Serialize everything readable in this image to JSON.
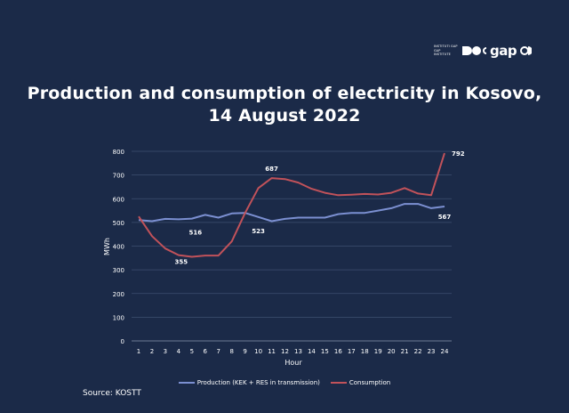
{
  "header": {
    "title_line1": "Production and consumption of electricity in Kosovo,",
    "title_line2": "14 August 2022",
    "logo_small": "INSTITUTI GAP GAP INSTITUTE",
    "logo_mark": "gap"
  },
  "source": "Source: KOSTT",
  "colors": {
    "production": "#7b8fd1",
    "consumption": "#c1525a",
    "grid": "#3e4f70",
    "background": "#1b2a48"
  },
  "chart_data": {
    "type": "line",
    "title": "Production and consumption of electricity in Kosovo, 14 August 2022",
    "xlabel": "Hour",
    "ylabel": "MWh",
    "x": [
      1,
      2,
      3,
      4,
      5,
      6,
      7,
      8,
      9,
      10,
      11,
      12,
      13,
      14,
      15,
      16,
      17,
      18,
      19,
      20,
      21,
      22,
      23,
      24
    ],
    "ylim": [
      0,
      800
    ],
    "yticks": [
      0,
      100,
      200,
      300,
      400,
      500,
      600,
      700,
      800
    ],
    "grid": true,
    "legend_position": "bottom",
    "series": [
      {
        "name": "Production (KEK + RES in transmission)",
        "values": [
          510,
          505,
          515,
          513,
          516,
          532,
          520,
          538,
          540,
          523,
          505,
          515,
          520,
          520,
          520,
          535,
          540,
          540,
          550,
          560,
          578,
          578,
          560,
          567
        ]
      },
      {
        "name": "Consumption",
        "values": [
          525,
          442,
          390,
          362,
          355,
          360,
          360,
          420,
          540,
          645,
          687,
          683,
          668,
          642,
          625,
          615,
          617,
          620,
          618,
          625,
          645,
          622,
          615,
          792
        ]
      }
    ],
    "annotations": [
      {
        "series": 0,
        "x": 5,
        "label": "516"
      },
      {
        "series": 0,
        "x": 10,
        "label": "523"
      },
      {
        "series": 0,
        "x": 24,
        "label": "567"
      },
      {
        "series": 1,
        "x": 5,
        "label": "355"
      },
      {
        "series": 1,
        "x": 11,
        "label": "687"
      },
      {
        "series": 1,
        "x": 24,
        "label": "792"
      }
    ]
  }
}
